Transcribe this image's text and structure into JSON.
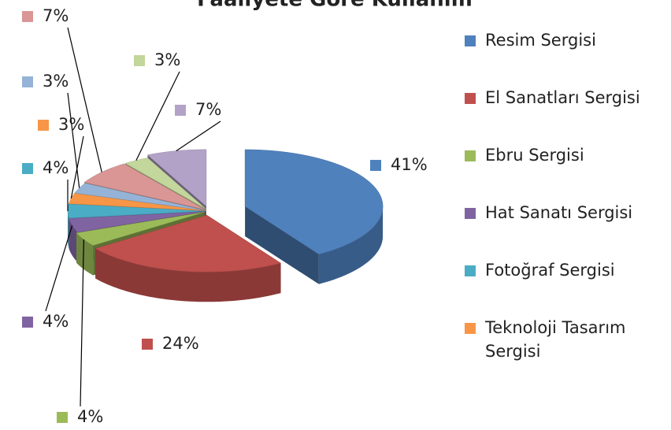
{
  "chart_data": {
    "type": "pie3d",
    "title": "Faaliyete Göre Kullanım",
    "categories": [
      "Resim Sergisi",
      "El Sanatları Sergisi",
      "Ebru Sergisi",
      "Hat Sanatı Sergisi",
      "Fotoğraf Sergisi",
      "Teknoloji Tasarım Sergisi",
      null,
      null,
      null,
      null
    ],
    "values": [
      41,
      24,
      4,
      4,
      4,
      3,
      3,
      7,
      3,
      7
    ],
    "value_labels": [
      "41%",
      "24%",
      "4%",
      "4%",
      "4%",
      "3%",
      "3%",
      "7%",
      "3%",
      "7%"
    ],
    "colors": [
      "#4f81bd",
      "#c0504d",
      "#9bbb59",
      "#8064a2",
      "#4bacc6",
      "#f79646",
      "#95b3d7",
      "#d99694",
      "#c3d69b",
      "#b3a2c7"
    ],
    "legend": "right"
  }
}
